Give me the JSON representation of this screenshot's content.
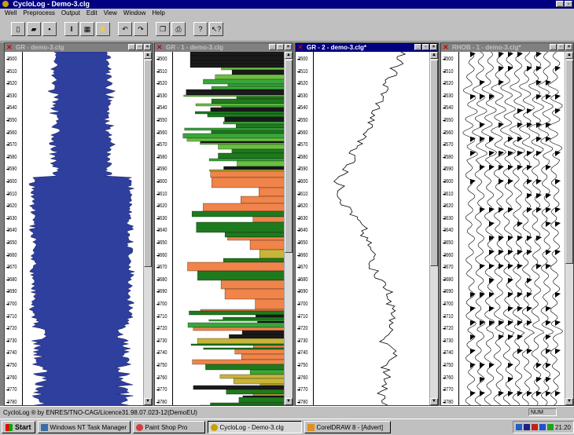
{
  "window": {
    "title": "CycloLog - Demo-3.clg"
  },
  "menu": [
    "Well",
    "Preprocess",
    "Output",
    "Edit",
    "View",
    "Window",
    "Help"
  ],
  "toolbar": [
    {
      "name": "new-file-icon",
      "glyph": "▯"
    },
    {
      "name": "open-folder-icon",
      "glyph": "▰"
    },
    {
      "name": "save-icon",
      "glyph": "▪"
    },
    {
      "name": "track-add-icon",
      "glyph": "‖"
    },
    {
      "name": "track-grid-icon",
      "glyph": "▦"
    },
    {
      "name": "wand-icon",
      "glyph": "⚡"
    },
    {
      "name": "undo-icon",
      "glyph": "↶"
    },
    {
      "name": "redo-icon",
      "glyph": "↷"
    },
    {
      "name": "copy-icon",
      "glyph": "❐"
    },
    {
      "name": "print-icon",
      "glyph": "⎙"
    },
    {
      "name": "help-icon",
      "glyph": "?"
    },
    {
      "name": "context-help-icon",
      "glyph": "↖?"
    }
  ],
  "panes": [
    {
      "title": "GR - demo-3.clg",
      "active": false
    },
    {
      "title": "GR - 1 - demo-3.clg",
      "active": false
    },
    {
      "title": "GR - 2 - demo-3.clg*",
      "active": true
    },
    {
      "title": "RHOB - 1 - demo-3.clg*",
      "active": false
    }
  ],
  "depth_ticks": [
    "3500",
    "3510",
    "3520",
    "3530",
    "3540",
    "3550",
    "3560",
    "3570",
    "3580",
    "3590",
    "3600",
    "3610",
    "3620",
    "3630",
    "3640",
    "3650",
    "3660",
    "3670",
    "3680",
    "3690",
    "3700",
    "3710",
    "3720",
    "3730",
    "3740",
    "3750",
    "3760",
    "3770",
    "3780"
  ],
  "depth_ticks_pane3": [
    "3500",
    "3510",
    "3520",
    "3530",
    "3540",
    "3550",
    "3560",
    "3570",
    "3580",
    "3590",
    "3600",
    "3610",
    "3620",
    "3630",
    "3640",
    "3650",
    "3660",
    "3670",
    "3680",
    "3690",
    "3700",
    "3710",
    "3720",
    "3730",
    "3740",
    "3750",
    "3760",
    "3770",
    "3780"
  ],
  "status": {
    "text": "CycloLog ® by ENRES/TNO-CAG/Licence31.98.07.023-12(DemoEU)",
    "num": "NUM"
  },
  "taskbar": {
    "start": "Start",
    "items": [
      {
        "label": "Windows NT Task Manager",
        "icon": "task-manager-icon",
        "pressed": false
      },
      {
        "label": "Paint Shop Pro",
        "icon": "paint-shop-icon",
        "pressed": false
      },
      {
        "label": "CycloLog - Demo-3.clg",
        "icon": "cyclolog-icon",
        "pressed": true
      },
      {
        "label": "CorelDRAW 8 - [Advert]",
        "icon": "coreldraw-icon",
        "pressed": false
      }
    ],
    "clock": "21:20"
  },
  "colors": {
    "gr_fill": "#2e3f9e",
    "title_active": "#000080",
    "title_inactive": "#808080",
    "facies": [
      "#1a1a1a",
      "#1e7a1e",
      "#3aa63a",
      "#6ac040",
      "#c8b43a",
      "#f0844a",
      "#9a3a1e"
    ]
  }
}
